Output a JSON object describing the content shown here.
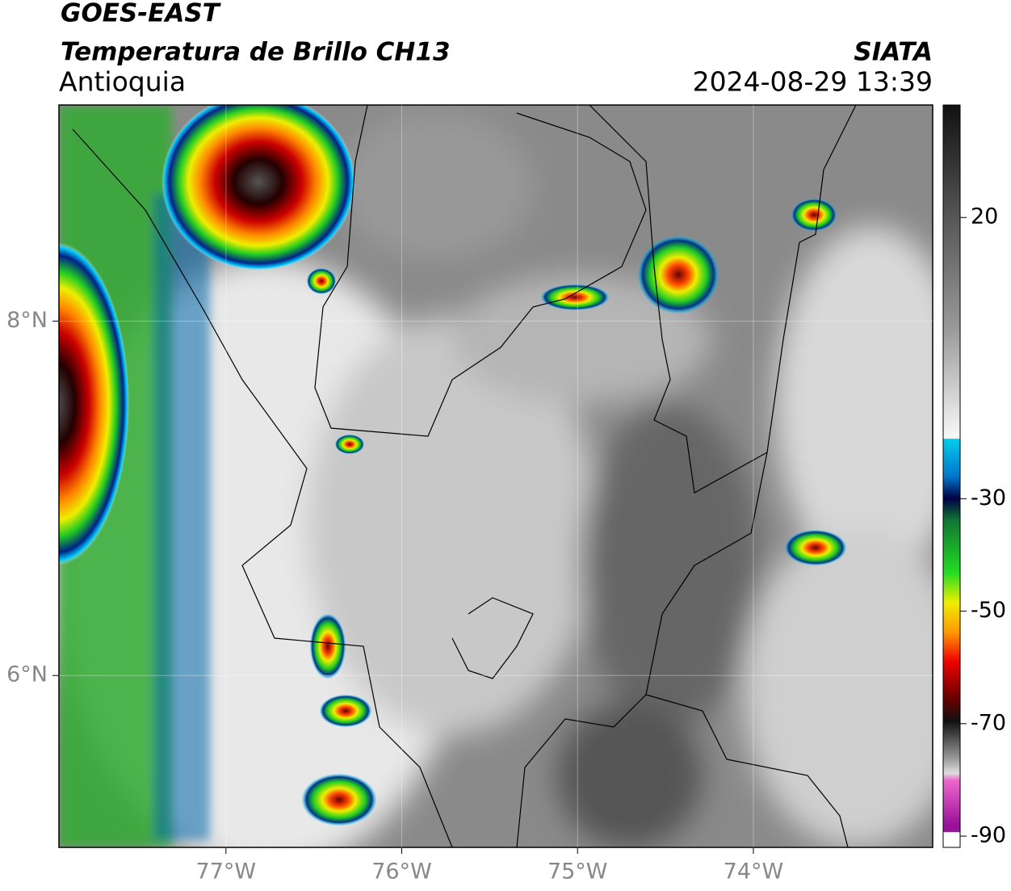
{
  "header": {
    "satellite": "GOES-EAST",
    "product": "Temperatura de Brillo CH13",
    "region": "Antioquia",
    "source": "SIATA",
    "datetime": "2024-08-29 13:39"
  },
  "map": {
    "xlim": [
      -77.95,
      -72.98
    ],
    "ylim": [
      5.03,
      9.22
    ],
    "xticks": [
      {
        "value": -77,
        "label": "77°W"
      },
      {
        "value": -76,
        "label": "76°W"
      },
      {
        "value": -75,
        "label": "75°W"
      },
      {
        "value": -74,
        "label": "74°W"
      }
    ],
    "yticks": [
      {
        "value": 6,
        "label": "6°N"
      },
      {
        "value": 8,
        "label": "8°N"
      }
    ],
    "grid": true
  },
  "colorbar": {
    "lim": [
      -92,
      40
    ],
    "ticks": [
      20,
      -30,
      -50,
      -70,
      -90
    ]
  }
}
